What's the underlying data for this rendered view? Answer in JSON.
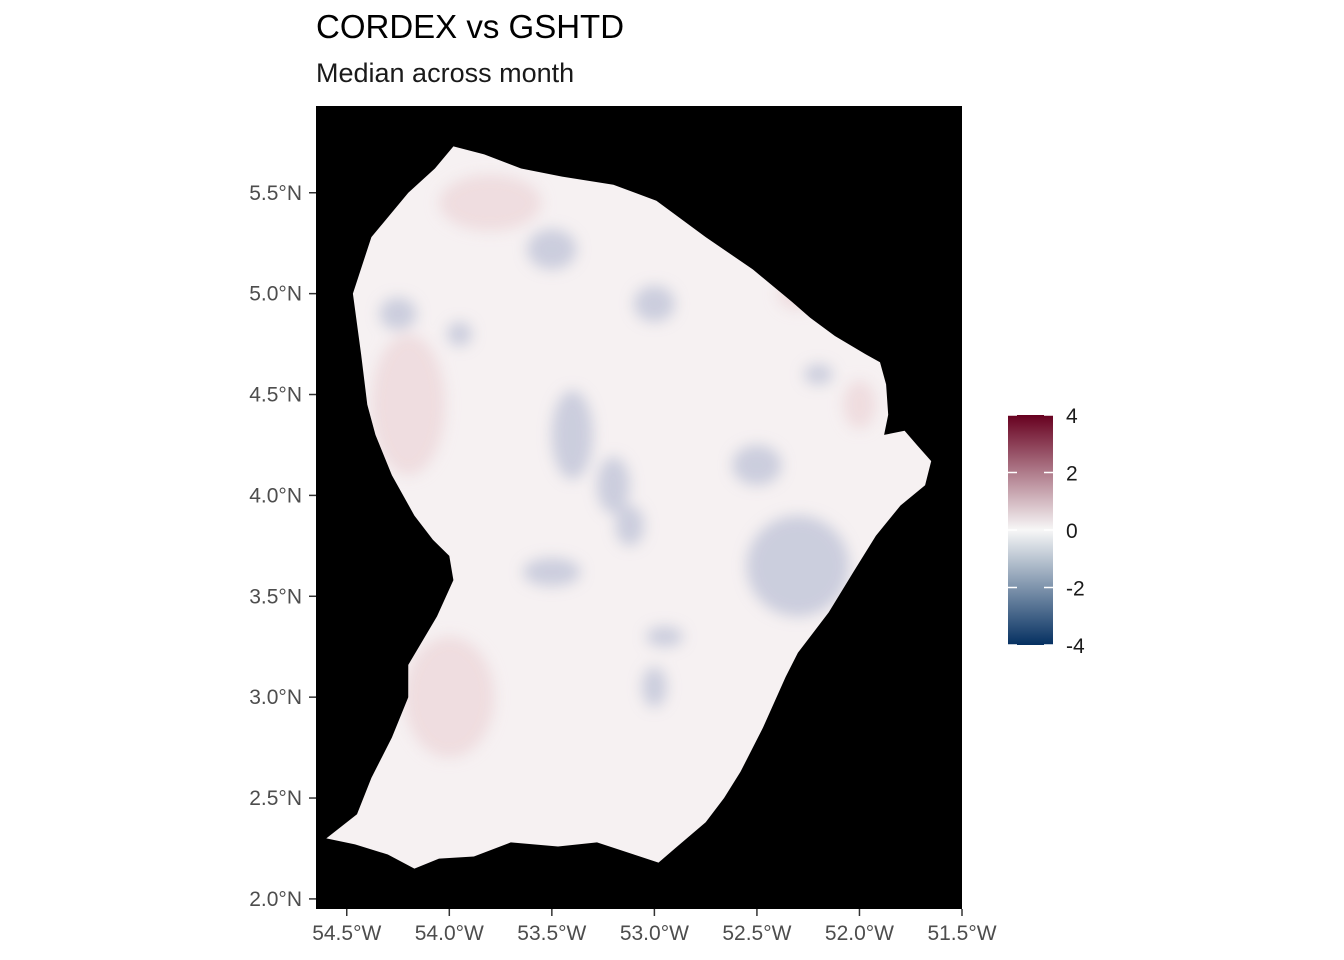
{
  "title": "CORDEX vs GSHTD",
  "subtitle": "Median across month",
  "colors": {
    "panel_background": "#000000",
    "scale_high": "#67001F",
    "scale_mid": "#F7F7F7",
    "scale_low": "#053061",
    "land_base": "#F6F1F2",
    "negative_patch": "#A7B0CC",
    "positive_patch": "#EBD3D6",
    "tick": "#333333"
  },
  "chart_data": {
    "type": "heatmap",
    "title": "CORDEX vs GSHTD",
    "subtitle": "Median across month",
    "xlabel": "",
    "ylabel": "",
    "xlim": [
      -54.65,
      -51.5
    ],
    "ylim": [
      1.95,
      5.93
    ],
    "x_ticks": [
      -54.5,
      -54.0,
      -53.5,
      -53.0,
      -52.5,
      -52.0,
      -51.5
    ],
    "x_tick_labels": [
      "54.5°W",
      "54.0°W",
      "53.5°W",
      "53.0°W",
      "52.5°W",
      "52.0°W",
      "51.5°W"
    ],
    "y_ticks": [
      2.0,
      2.5,
      3.0,
      3.5,
      4.0,
      4.5,
      5.0,
      5.5
    ],
    "y_tick_labels": [
      "2.0°N",
      "2.5°N",
      "3.0°N",
      "3.5°N",
      "4.0°N",
      "4.5°N",
      "5.0°N",
      "5.5°N"
    ],
    "color_scale": {
      "limits": [
        -4,
        4
      ],
      "breaks": [
        4,
        2,
        0,
        -2,
        -4
      ],
      "break_labels": [
        "4",
        "2",
        "0",
        "-2",
        "-4"
      ],
      "placement": "right"
    },
    "grid": false,
    "region_outline_lonlat": [
      [
        -53.98,
        5.73
      ],
      [
        -53.83,
        5.69
      ],
      [
        -53.65,
        5.62
      ],
      [
        -53.45,
        5.58
      ],
      [
        -53.2,
        5.54
      ],
      [
        -52.99,
        5.46
      ],
      [
        -52.75,
        5.28
      ],
      [
        -52.52,
        5.12
      ],
      [
        -52.33,
        4.96
      ],
      [
        -52.24,
        4.88
      ],
      [
        -52.12,
        4.79
      ],
      [
        -51.97,
        4.7
      ],
      [
        -51.9,
        4.66
      ],
      [
        -51.87,
        4.55
      ],
      [
        -51.86,
        4.4
      ],
      [
        -51.88,
        4.3
      ],
      [
        -51.78,
        4.32
      ],
      [
        -51.72,
        4.25
      ],
      [
        -51.65,
        4.17
      ],
      [
        -51.68,
        4.05
      ],
      [
        -51.8,
        3.95
      ],
      [
        -51.92,
        3.8
      ],
      [
        -52.03,
        3.62
      ],
      [
        -52.15,
        3.42
      ],
      [
        -52.3,
        3.22
      ],
      [
        -52.36,
        3.1
      ],
      [
        -52.47,
        2.85
      ],
      [
        -52.58,
        2.63
      ],
      [
        -52.66,
        2.5
      ],
      [
        -52.75,
        2.38
      ],
      [
        -52.9,
        2.25
      ],
      [
        -52.98,
        2.18
      ],
      [
        -53.1,
        2.22
      ],
      [
        -53.28,
        2.28
      ],
      [
        -53.47,
        2.26
      ],
      [
        -53.7,
        2.28
      ],
      [
        -53.88,
        2.21
      ],
      [
        -54.05,
        2.2
      ],
      [
        -54.17,
        2.15
      ],
      [
        -54.3,
        2.22
      ],
      [
        -54.46,
        2.27
      ],
      [
        -54.6,
        2.3
      ],
      [
        -54.45,
        2.42
      ],
      [
        -54.38,
        2.6
      ],
      [
        -54.28,
        2.8
      ],
      [
        -54.2,
        3.0
      ],
      [
        -54.2,
        3.16
      ],
      [
        -54.06,
        3.4
      ],
      [
        -53.98,
        3.58
      ],
      [
        -54.0,
        3.7
      ],
      [
        -54.08,
        3.78
      ],
      [
        -54.17,
        3.9
      ],
      [
        -54.28,
        4.1
      ],
      [
        -54.36,
        4.3
      ],
      [
        -54.4,
        4.45
      ],
      [
        -54.43,
        4.7
      ],
      [
        -54.47,
        5.0
      ],
      [
        -54.38,
        5.28
      ],
      [
        -54.2,
        5.5
      ],
      [
        -54.07,
        5.62
      ],
      [
        -53.98,
        5.73
      ]
    ],
    "patches": [
      {
        "sign": "negative",
        "lon": -53.0,
        "lat": 4.95,
        "rx": 0.1,
        "ry": 0.09
      },
      {
        "sign": "negative",
        "lon": -53.5,
        "lat": 5.22,
        "rx": 0.12,
        "ry": 0.1
      },
      {
        "sign": "negative",
        "lon": -53.4,
        "lat": 4.3,
        "rx": 0.1,
        "ry": 0.22
      },
      {
        "sign": "negative",
        "lon": -53.2,
        "lat": 4.05,
        "rx": 0.08,
        "ry": 0.14
      },
      {
        "sign": "negative",
        "lon": -53.12,
        "lat": 3.85,
        "rx": 0.07,
        "ry": 0.1
      },
      {
        "sign": "negative",
        "lon": -53.5,
        "lat": 3.62,
        "rx": 0.14,
        "ry": 0.07
      },
      {
        "sign": "negative",
        "lon": -53.0,
        "lat": 3.05,
        "rx": 0.06,
        "ry": 0.1
      },
      {
        "sign": "negative",
        "lon": -52.95,
        "lat": 3.3,
        "rx": 0.09,
        "ry": 0.05
      },
      {
        "sign": "negative",
        "lon": -52.5,
        "lat": 4.15,
        "rx": 0.12,
        "ry": 0.1
      },
      {
        "sign": "negative",
        "lon": -52.3,
        "lat": 3.65,
        "rx": 0.25,
        "ry": 0.25
      },
      {
        "sign": "negative",
        "lon": -54.25,
        "lat": 4.9,
        "rx": 0.09,
        "ry": 0.08
      },
      {
        "sign": "negative",
        "lon": -53.95,
        "lat": 4.8,
        "rx": 0.06,
        "ry": 0.06
      },
      {
        "sign": "negative",
        "lon": -52.2,
        "lat": 4.6,
        "rx": 0.07,
        "ry": 0.05
      },
      {
        "sign": "positive",
        "lon": -54.0,
        "lat": 3.0,
        "rx": 0.22,
        "ry": 0.3
      },
      {
        "sign": "positive",
        "lon": -54.2,
        "lat": 4.45,
        "rx": 0.18,
        "ry": 0.35
      },
      {
        "sign": "positive",
        "lon": -53.8,
        "lat": 5.45,
        "rx": 0.25,
        "ry": 0.14
      },
      {
        "sign": "positive",
        "lon": -52.0,
        "lat": 4.45,
        "rx": 0.08,
        "ry": 0.12
      },
      {
        "sign": "positive",
        "lon": -52.3,
        "lat": 5.0,
        "rx": 0.1,
        "ry": 0.08
      }
    ]
  }
}
